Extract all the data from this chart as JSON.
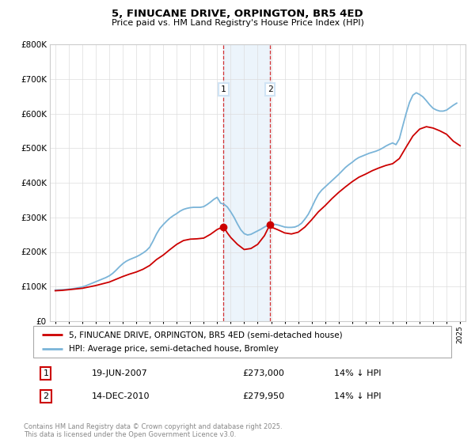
{
  "title": "5, FINUCANE DRIVE, ORPINGTON, BR5 4ED",
  "subtitle": "Price paid vs. HM Land Registry's House Price Index (HPI)",
  "legend_line1": "5, FINUCANE DRIVE, ORPINGTON, BR5 4ED (semi-detached house)",
  "legend_line2": "HPI: Average price, semi-detached house, Bromley",
  "footnote": "Contains HM Land Registry data © Crown copyright and database right 2025.\nThis data is licensed under the Open Government Licence v3.0.",
  "transaction1_label": "1",
  "transaction1_date": "19-JUN-2007",
  "transaction1_price": "£273,000",
  "transaction1_hpi": "14% ↓ HPI",
  "transaction2_label": "2",
  "transaction2_date": "14-DEC-2010",
  "transaction2_price": "£279,950",
  "transaction2_hpi": "14% ↓ HPI",
  "hpi_color": "#7ab4d8",
  "price_color": "#cc0000",
  "marker_color": "#cc0000",
  "shading_color": "#d0e4f5",
  "ylim_min": 0,
  "ylim_max": 800000,
  "transaction1_x": 2007.47,
  "transaction2_x": 2010.92,
  "hpi_data_x": [
    1995,
    1995.25,
    1995.5,
    1995.75,
    1996,
    1996.25,
    1996.5,
    1996.75,
    1997,
    1997.25,
    1997.5,
    1997.75,
    1998,
    1998.25,
    1998.5,
    1998.75,
    1999,
    1999.25,
    1999.5,
    1999.75,
    2000,
    2000.25,
    2000.5,
    2000.75,
    2001,
    2001.25,
    2001.5,
    2001.75,
    2002,
    2002.25,
    2002.5,
    2002.75,
    2003,
    2003.25,
    2003.5,
    2003.75,
    2004,
    2004.25,
    2004.5,
    2004.75,
    2005,
    2005.25,
    2005.5,
    2005.75,
    2006,
    2006.25,
    2006.5,
    2006.75,
    2007,
    2007.25,
    2007.5,
    2007.75,
    2008,
    2008.25,
    2008.5,
    2008.75,
    2009,
    2009.25,
    2009.5,
    2009.75,
    2010,
    2010.25,
    2010.5,
    2010.75,
    2011,
    2011.25,
    2011.5,
    2011.75,
    2012,
    2012.25,
    2012.5,
    2012.75,
    2013,
    2013.25,
    2013.5,
    2013.75,
    2014,
    2014.25,
    2014.5,
    2014.75,
    2015,
    2015.25,
    2015.5,
    2015.75,
    2016,
    2016.25,
    2016.5,
    2016.75,
    2017,
    2017.25,
    2017.5,
    2017.75,
    2018,
    2018.25,
    2018.5,
    2018.75,
    2019,
    2019.25,
    2019.5,
    2019.75,
    2020,
    2020.25,
    2020.5,
    2020.75,
    2021,
    2021.25,
    2021.5,
    2021.75,
    2022,
    2022.25,
    2022.5,
    2022.75,
    2023,
    2023.25,
    2023.5,
    2023.75,
    2024,
    2024.25,
    2024.5,
    2024.75
  ],
  "hpi_data_y": [
    90000,
    90500,
    91000,
    91500,
    92500,
    93500,
    95000,
    97000,
    99000,
    102000,
    106000,
    110000,
    114000,
    118000,
    122000,
    126000,
    131000,
    138000,
    147000,
    157000,
    166000,
    173000,
    178000,
    182000,
    186000,
    191000,
    197000,
    204000,
    214000,
    232000,
    252000,
    268000,
    279000,
    289000,
    298000,
    305000,
    311000,
    318000,
    323000,
    326000,
    328000,
    329000,
    329000,
    329000,
    331000,
    337000,
    344000,
    352000,
    358000,
    341000,
    338000,
    330000,
    316000,
    300000,
    281000,
    264000,
    253000,
    249000,
    251000,
    256000,
    261000,
    266000,
    272000,
    277000,
    280000,
    280000,
    278000,
    275000,
    272000,
    271000,
    271000,
    272000,
    276000,
    283000,
    295000,
    309000,
    328000,
    349000,
    367000,
    379000,
    388000,
    397000,
    406000,
    415000,
    424000,
    434000,
    444000,
    452000,
    459000,
    467000,
    473000,
    477000,
    481000,
    485000,
    488000,
    491000,
    495000,
    500000,
    506000,
    511000,
    515000,
    510000,
    527000,
    564000,
    600000,
    632000,
    653000,
    660000,
    655000,
    648000,
    637000,
    625000,
    615000,
    610000,
    607000,
    607000,
    610000,
    617000,
    624000,
    630000
  ],
  "price_data_x": [
    1995.0,
    1995.5,
    1996.0,
    1996.5,
    1997.0,
    1997.5,
    1998.0,
    1998.5,
    1999.0,
    1999.5,
    2000.0,
    2000.5,
    2001.0,
    2001.5,
    2002.0,
    2002.5,
    2003.0,
    2003.5,
    2004.0,
    2004.5,
    2005.0,
    2005.5,
    2006.0,
    2006.5,
    2007.0,
    2007.47,
    2007.75,
    2008.0,
    2008.5,
    2009.0,
    2009.5,
    2010.0,
    2010.5,
    2010.92,
    2011.0,
    2011.5,
    2012.0,
    2012.5,
    2013.0,
    2013.5,
    2014.0,
    2014.5,
    2015.0,
    2015.5,
    2016.0,
    2016.5,
    2017.0,
    2017.5,
    2018.0,
    2018.5,
    2019.0,
    2019.5,
    2020.0,
    2020.5,
    2021.0,
    2021.5,
    2022.0,
    2022.5,
    2023.0,
    2023.5,
    2024.0,
    2024.5,
    2025.0
  ],
  "price_data_y": [
    88000,
    89000,
    91000,
    93000,
    95000,
    99000,
    103000,
    108000,
    113000,
    121000,
    129000,
    136000,
    142000,
    150000,
    161000,
    178000,
    191000,
    207000,
    222000,
    233000,
    237000,
    238000,
    240000,
    251000,
    265000,
    273000,
    255000,
    242000,
    222000,
    207000,
    210000,
    222000,
    247000,
    279950,
    272000,
    264000,
    255000,
    252000,
    257000,
    272000,
    293000,
    316000,
    334000,
    354000,
    372000,
    388000,
    403000,
    416000,
    425000,
    435000,
    443000,
    450000,
    455000,
    470000,
    503000,
    535000,
    555000,
    562000,
    558000,
    550000,
    540000,
    520000,
    507000
  ]
}
